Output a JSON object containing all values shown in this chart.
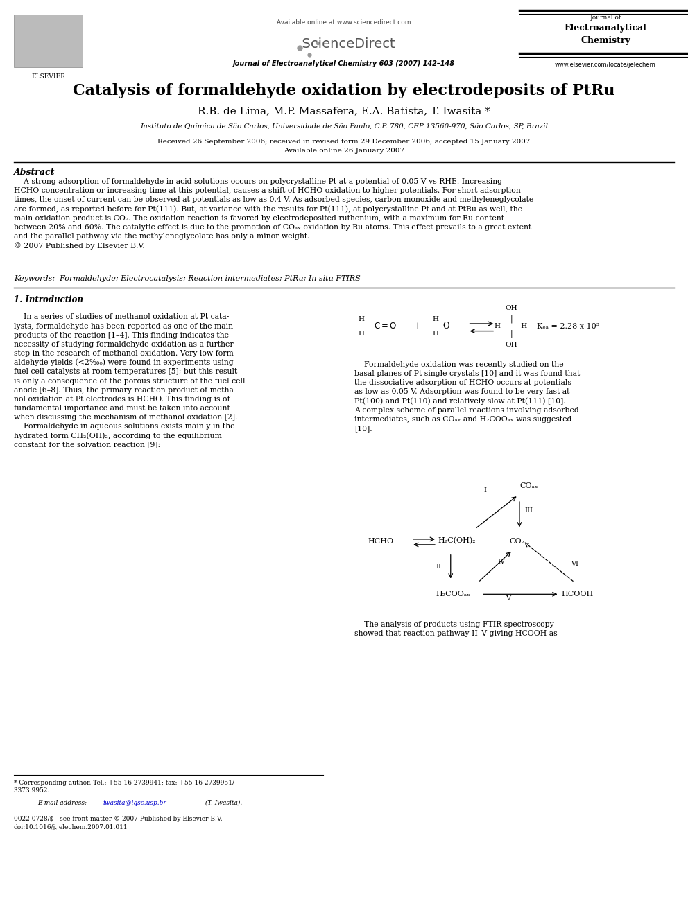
{
  "bg_color": "#ffffff",
  "page_width": 9.92,
  "page_height": 13.23,
  "header": {
    "available_online": "Available online at www.sciencedirect.com",
    "journal_name_top": "Journal of",
    "journal_name_bold": "Electroanalytical",
    "journal_name_bold2": "Chemistry",
    "journal_ref": "Journal of Electroanalytical Chemistry 603 (2007) 142–148",
    "website": "www.elsevier.com/locate/jelechem"
  },
  "title": "Catalysis of formaldehyde oxidation by electrodeposits of PtRu",
  "authors": "R.B. de Lima, M.P. Massafera, E.A. Batista, T. Iwasita *",
  "affiliation": "Instituto de Química de São Carlos, Universidade de São Paulo, C.P. 780, CEP 13560-970, São Carlos, SP, Brazil",
  "received": "Received 26 September 2006; received in revised form 29 December 2006; accepted 15 January 2007",
  "available_online_date": "Available online 26 January 2007",
  "abstract_title": "Abstract",
  "keywords": "Keywords:  Formaldehyde; Electrocatalysis; Reaction intermediates; PtRu; In situ FTIRS",
  "section1_title": "1. Introduction",
  "footnote1": "* Corresponding author. Tel.: +55 16 2739941; fax: +55 16 2739951/\n3373 9952.",
  "footnote2_pre": "E-mail address: ",
  "footnote2_link": "iwasita@iqsc.usp.br",
  "footnote2_post": " (T. Iwasita).",
  "footnote3": "0022-0728/$ - see front matter © 2007 Published by Elsevier B.V.\ndoi:10.1016/j.jelechem.2007.01.011"
}
